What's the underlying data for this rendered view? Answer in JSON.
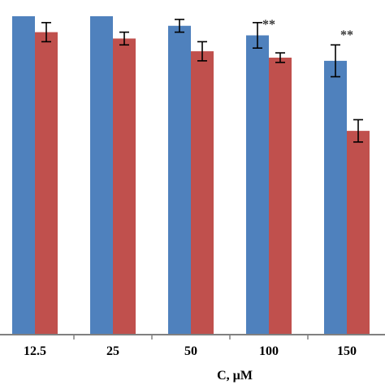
{
  "chart_data": {
    "type": "bar",
    "title": "",
    "xlabel": "C, µM",
    "ylabel": "",
    "categories": [
      "12.5",
      "25",
      "50",
      "100",
      "150"
    ],
    "series": [
      {
        "color": "#4f81bd",
        "values": [
          100,
          100,
          97,
          94,
          86
        ],
        "errors": [
          0,
          0,
          2,
          4,
          5
        ]
      },
      {
        "color": "#c0504d",
        "values": [
          95,
          93,
          89,
          87,
          64
        ],
        "errors": [
          3,
          2,
          3,
          1.5,
          3.5
        ]
      }
    ],
    "annotations": [
      {
        "category": "100",
        "text": "**"
      },
      {
        "category": "150",
        "text": "**"
      }
    ],
    "ylim": [
      0,
      100
    ],
    "grid": false,
    "legend": "none"
  }
}
